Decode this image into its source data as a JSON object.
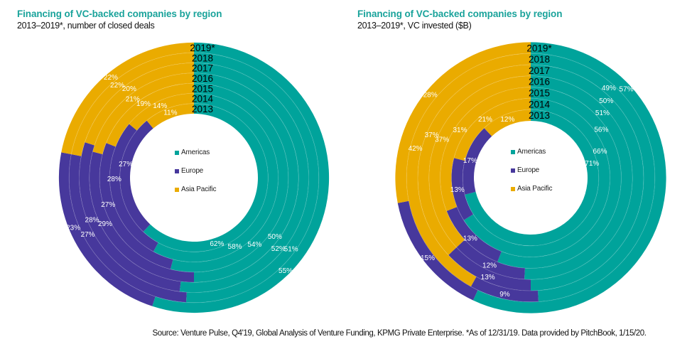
{
  "colors": {
    "americas": "#00a39b",
    "europe": "#47389c",
    "asia_pacific": "#eaab00",
    "title": "#1aa39b"
  },
  "legend": [
    {
      "key": "americas",
      "label": "Americas"
    },
    {
      "key": "europe",
      "label": "Europe"
    },
    {
      "key": "asia_pacific",
      "label": "Asia Pacific"
    }
  ],
  "footer": "Source: Venture Pulse, Q4'19, Global Analysis of Venture Funding, KPMG Private Enterprise. *As of 12/31/19. Data provided by PitchBook, 1/15/20.",
  "chart_data": [
    {
      "type": "pie",
      "subtype": "multi-ring donut (stacked 100%)",
      "title": "Financing of VC-backed companies by region",
      "subtitle": "2013–2019*, number of closed deals",
      "rings_inner_to_outer": [
        "2013",
        "2014",
        "2015",
        "2016",
        "2017",
        "2018",
        "2019*"
      ],
      "legend_position": "center",
      "unit": "%",
      "series": [
        {
          "name": "Americas",
          "key": "americas",
          "values": [
            62,
            58,
            54,
            50,
            52,
            51,
            55
          ]
        },
        {
          "name": "Europe",
          "key": "europe",
          "values": [
            27,
            28,
            27,
            29,
            28,
            27,
            23
          ]
        },
        {
          "name": "Asia Pacific",
          "key": "asia_pacific",
          "values": [
            11,
            14,
            19,
            21,
            20,
            22,
            22
          ]
        }
      ]
    },
    {
      "type": "pie",
      "subtype": "multi-ring donut (stacked 100%)",
      "title": "Financing of VC-backed companies by region",
      "subtitle": "2013–2019*, VC invested ($B)",
      "rings_inner_to_outer": [
        "2013",
        "2014",
        "2015",
        "2016",
        "2017",
        "2018",
        "2019*"
      ],
      "legend_position": "center",
      "unit": "%",
      "series": [
        {
          "name": "Americas",
          "key": "americas",
          "values": [
            71,
            66,
            56,
            51,
            50,
            49,
            57
          ]
        },
        {
          "name": "Europe",
          "key": "europe",
          "values": [
            17,
            13,
            13,
            12,
            13,
            9,
            15
          ]
        },
        {
          "name": "Asia Pacific",
          "key": "asia_pacific",
          "values": [
            12,
            21,
            31,
            37,
            37,
            42,
            28
          ]
        }
      ]
    }
  ]
}
